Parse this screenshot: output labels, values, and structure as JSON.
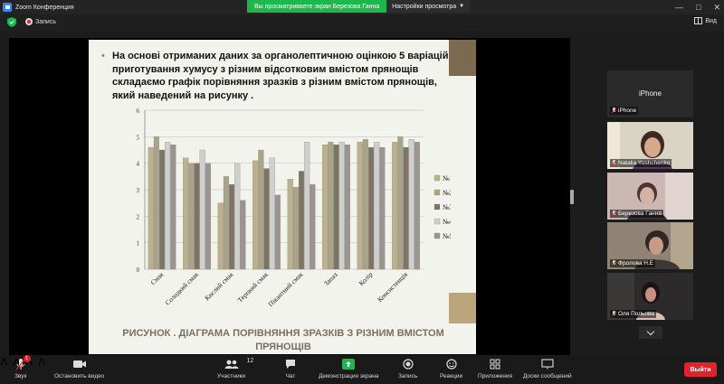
{
  "window": {
    "title": "Zoom Конференция"
  },
  "header": {
    "record_label": "Запись",
    "view_label": "Вид",
    "share_banner": "Вы просматриваете экран Березова Ганна",
    "view_options": "Настройки просмотра"
  },
  "slide": {
    "bullet_text": "На основі отриманих даних за органолептичною оцінкою 5 варіацій приготування хумусу з різним відсотковим вмістом прянощів складаємо графік порівняння зразків з різним вмістом прянощів, який наведений на рисунку .",
    "caption_line1": "РИСУНОК . ДІАГРАМА ПОРІВНЯННЯ ЗРАЗКІВ З РІЗНИМ ВМІСТОМ",
    "caption_line2": "ПРЯНОЩІВ"
  },
  "chart_data": {
    "type": "bar",
    "categories": [
      "Смак",
      "Солодкий смак",
      "Кислий смак",
      "Терпкий смак",
      "Пікантний смак",
      "Запах",
      "Колір",
      "Консистенція"
    ],
    "series": [
      {
        "name": "№1",
        "color": "#bcb08e",
        "values": [
          4.6,
          4.2,
          2.5,
          4.1,
          3.4,
          4.7,
          4.8,
          4.8
        ]
      },
      {
        "name": "№2",
        "color": "#a8a48c",
        "values": [
          5.0,
          4.0,
          3.5,
          4.5,
          3.1,
          4.8,
          4.9,
          5.0
        ]
      },
      {
        "name": "№3",
        "color": "#7e7466",
        "values": [
          4.5,
          4.0,
          3.2,
          3.8,
          3.7,
          4.7,
          4.6,
          4.6
        ]
      },
      {
        "name": "№4",
        "color": "#cfcfcf",
        "values": [
          4.8,
          4.5,
          4.0,
          4.2,
          4.8,
          4.8,
          4.8,
          4.9
        ]
      },
      {
        "name": "№5",
        "color": "#9a9494",
        "values": [
          4.7,
          4.0,
          2.6,
          2.8,
          3.2,
          4.7,
          4.6,
          4.8
        ]
      }
    ],
    "yticks": [
      0,
      1,
      2,
      3,
      4,
      5,
      6
    ],
    "ylim": [
      0,
      6
    ],
    "grid": true,
    "legend": "right"
  },
  "participants": {
    "phone_name": "iPhone",
    "phone_label": "iPhone",
    "p1": "Natalia Yushchenko",
    "p2": "Березова Ганна",
    "p3": "Фролова Н.Е",
    "p4": "Оля Польова"
  },
  "toolbar": {
    "audio": "Звук",
    "video": "Остановить видео",
    "participants": "Участники",
    "participants_count": "12",
    "chat": "Чат",
    "share": "Демонстрация экрана",
    "record": "Запись",
    "reactions": "Реакции",
    "apps": "Приложения",
    "whiteboards": "Доски сообщений",
    "leave": "Выйти",
    "audio_badge": "1"
  }
}
